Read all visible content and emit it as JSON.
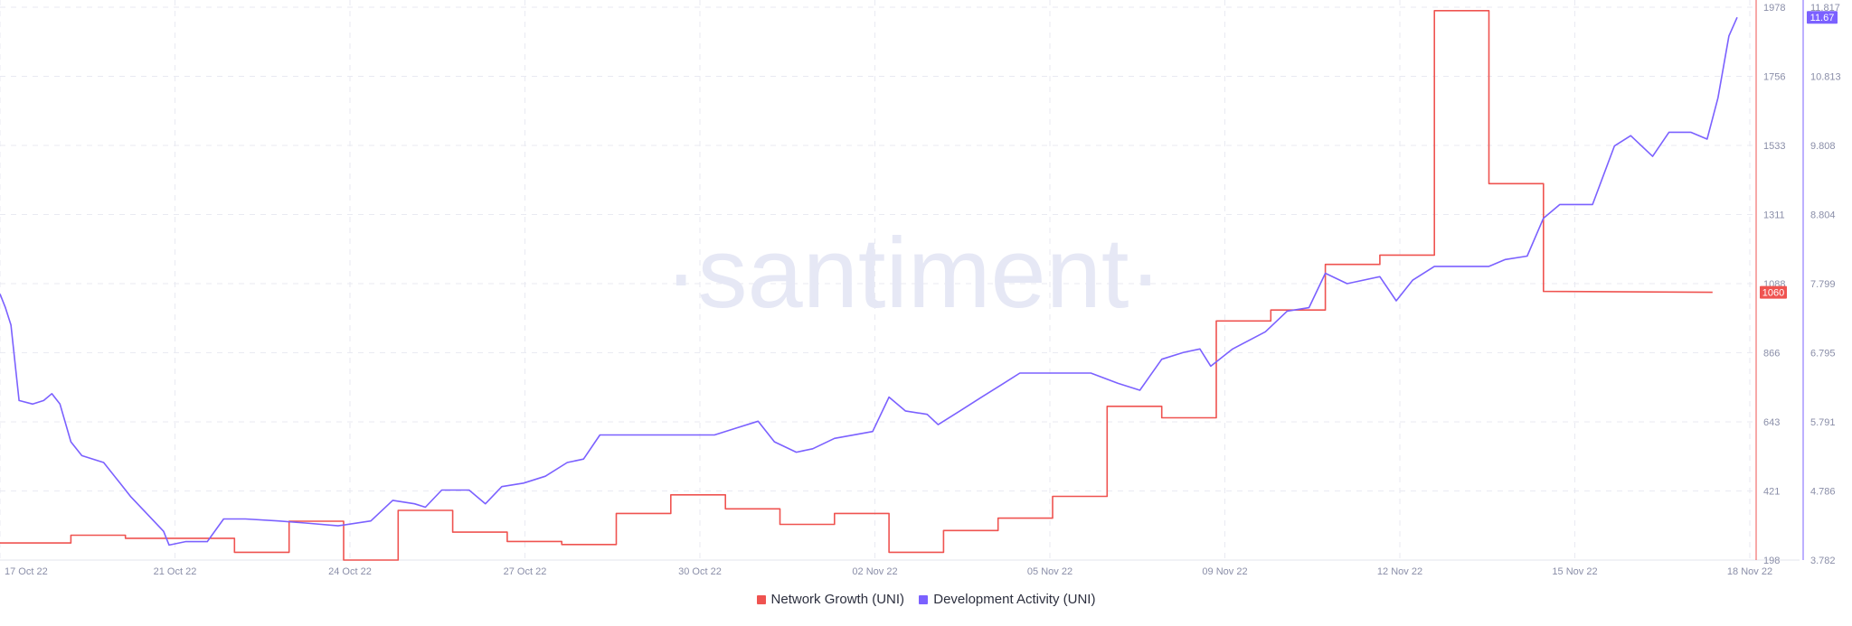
{
  "chart_data": {
    "type": "line",
    "watermark": "·santiment·",
    "x_labels": [
      "17 Oct 22",
      "21 Oct 22",
      "24 Oct 22",
      "27 Oct 22",
      "30 Oct 22",
      "02 Nov 22",
      "05 Nov 22",
      "09 Nov 22",
      "12 Nov 22",
      "15 Nov 22",
      "18 Nov 22"
    ],
    "y_left_ticks": [
      "1978",
      "1756",
      "1533",
      "1311",
      "1088",
      "866",
      "643",
      "421",
      "198"
    ],
    "y_right_ticks": [
      "11.817",
      "10.813",
      "9.808",
      "8.804",
      "7.799",
      "6.795",
      "5.791",
      "4.786",
      "3.782"
    ],
    "y_left_range": [
      198,
      1978
    ],
    "y_right_range": [
      3.782,
      11.817
    ],
    "x_range": [
      0,
      32
    ],
    "series": [
      {
        "name": "Network Growth (UNI)",
        "axis": "left",
        "color": "#ef5350",
        "step": true,
        "last_value_label": "1060",
        "points": [
          [
            0,
            253
          ],
          [
            1.3,
            253
          ],
          [
            1.3,
            278
          ],
          [
            2.3,
            278
          ],
          [
            2.3,
            268
          ],
          [
            4.3,
            268
          ],
          [
            4.3,
            223
          ],
          [
            5.3,
            223
          ],
          [
            5.3,
            323
          ],
          [
            6.3,
            323
          ],
          [
            6.3,
            198
          ],
          [
            7.3,
            198
          ],
          [
            7.3,
            358
          ],
          [
            8.3,
            358
          ],
          [
            8.3,
            288
          ],
          [
            9.3,
            288
          ],
          [
            9.3,
            258
          ],
          [
            10.3,
            258
          ],
          [
            10.3,
            248
          ],
          [
            11.3,
            248
          ],
          [
            11.3,
            348
          ],
          [
            12.3,
            348
          ],
          [
            12.3,
            408
          ],
          [
            13.3,
            408
          ],
          [
            13.3,
            363
          ],
          [
            14.3,
            363
          ],
          [
            14.3,
            313
          ],
          [
            15.3,
            313
          ],
          [
            15.3,
            348
          ],
          [
            16.3,
            348
          ],
          [
            16.3,
            223
          ],
          [
            17.3,
            223
          ],
          [
            17.3,
            293
          ],
          [
            18.3,
            293
          ],
          [
            18.3,
            333
          ],
          [
            19.3,
            333
          ],
          [
            19.3,
            403
          ],
          [
            20.3,
            403
          ],
          [
            20.3,
            693
          ],
          [
            21.3,
            693
          ],
          [
            21.3,
            656
          ],
          [
            22.3,
            656
          ],
          [
            22.3,
            968
          ],
          [
            23.3,
            968
          ],
          [
            23.3,
            1003
          ],
          [
            24.3,
            1003
          ],
          [
            24.3,
            1150
          ],
          [
            25.3,
            1150
          ],
          [
            25.3,
            1180
          ],
          [
            26.3,
            1180
          ],
          [
            26.3,
            1967
          ],
          [
            27.3,
            1967
          ],
          [
            27.3,
            1410
          ],
          [
            28.3,
            1410
          ],
          [
            28.3,
            1063
          ],
          [
            31.4,
            1060
          ]
        ]
      },
      {
        "name": "Development Activity (UNI)",
        "axis": "right",
        "color": "#7b61ff",
        "step": false,
        "last_value_label": "11.67",
        "points": [
          [
            0,
            7.65
          ],
          [
            0.1,
            7.45
          ],
          [
            0.2,
            7.2
          ],
          [
            0.35,
            6.1
          ],
          [
            0.6,
            6.05
          ],
          [
            0.8,
            6.1
          ],
          [
            0.95,
            6.2
          ],
          [
            1.1,
            6.05
          ],
          [
            1.3,
            5.5
          ],
          [
            1.5,
            5.3
          ],
          [
            1.9,
            5.2
          ],
          [
            2.2,
            4.9
          ],
          [
            2.4,
            4.7
          ],
          [
            2.7,
            4.45
          ],
          [
            3.0,
            4.2
          ],
          [
            3.1,
            4.0
          ],
          [
            3.4,
            4.05
          ],
          [
            3.8,
            4.05
          ],
          [
            4.1,
            4.38
          ],
          [
            4.5,
            4.38
          ],
          [
            5.1,
            4.35
          ],
          [
            5.6,
            4.32
          ],
          [
            6.2,
            4.28
          ],
          [
            6.8,
            4.35
          ],
          [
            7.2,
            4.65
          ],
          [
            7.6,
            4.6
          ],
          [
            7.8,
            4.55
          ],
          [
            8.1,
            4.8
          ],
          [
            8.6,
            4.8
          ],
          [
            8.9,
            4.6
          ],
          [
            9.2,
            4.85
          ],
          [
            9.6,
            4.9
          ],
          [
            10.0,
            5.0
          ],
          [
            10.4,
            5.2
          ],
          [
            10.7,
            5.25
          ],
          [
            11.0,
            5.6
          ],
          [
            11.4,
            5.6
          ],
          [
            12.0,
            5.6
          ],
          [
            12.6,
            5.6
          ],
          [
            13.1,
            5.6
          ],
          [
            13.5,
            5.7
          ],
          [
            13.9,
            5.8
          ],
          [
            14.2,
            5.5
          ],
          [
            14.6,
            5.35
          ],
          [
            14.9,
            5.4
          ],
          [
            15.3,
            5.55
          ],
          [
            16.0,
            5.65
          ],
          [
            16.3,
            6.15
          ],
          [
            16.6,
            5.95
          ],
          [
            17.0,
            5.9
          ],
          [
            17.2,
            5.75
          ],
          [
            17.6,
            5.95
          ],
          [
            18.0,
            6.15
          ],
          [
            18.4,
            6.35
          ],
          [
            18.7,
            6.5
          ],
          [
            19.5,
            6.5
          ],
          [
            20.0,
            6.5
          ],
          [
            20.5,
            6.35
          ],
          [
            20.9,
            6.25
          ],
          [
            21.3,
            6.7
          ],
          [
            21.7,
            6.8
          ],
          [
            22.0,
            6.85
          ],
          [
            22.2,
            6.6
          ],
          [
            22.6,
            6.85
          ],
          [
            23.2,
            7.1
          ],
          [
            23.6,
            7.4
          ],
          [
            24.0,
            7.45
          ],
          [
            24.3,
            7.95
          ],
          [
            24.7,
            7.8
          ],
          [
            25.3,
            7.9
          ],
          [
            25.6,
            7.55
          ],
          [
            25.9,
            7.85
          ],
          [
            26.3,
            8.05
          ],
          [
            26.8,
            8.05
          ],
          [
            27.3,
            8.05
          ],
          [
            27.6,
            8.15
          ],
          [
            28.0,
            8.2
          ],
          [
            28.3,
            8.75
          ],
          [
            28.6,
            8.95
          ],
          [
            28.9,
            8.95
          ],
          [
            29.2,
            8.95
          ],
          [
            29.6,
            9.8
          ],
          [
            29.9,
            9.95
          ],
          [
            30.3,
            9.65
          ],
          [
            30.6,
            10.0
          ],
          [
            31.0,
            10.0
          ],
          [
            31.3,
            9.9
          ],
          [
            31.5,
            10.5
          ],
          [
            31.7,
            11.4
          ],
          [
            31.85,
            11.67
          ]
        ]
      }
    ]
  },
  "legend": [
    {
      "label": "Network Growth (UNI)",
      "color": "#ef5350"
    },
    {
      "label": "Development Activity (UNI)",
      "color": "#7b61ff"
    }
  ]
}
